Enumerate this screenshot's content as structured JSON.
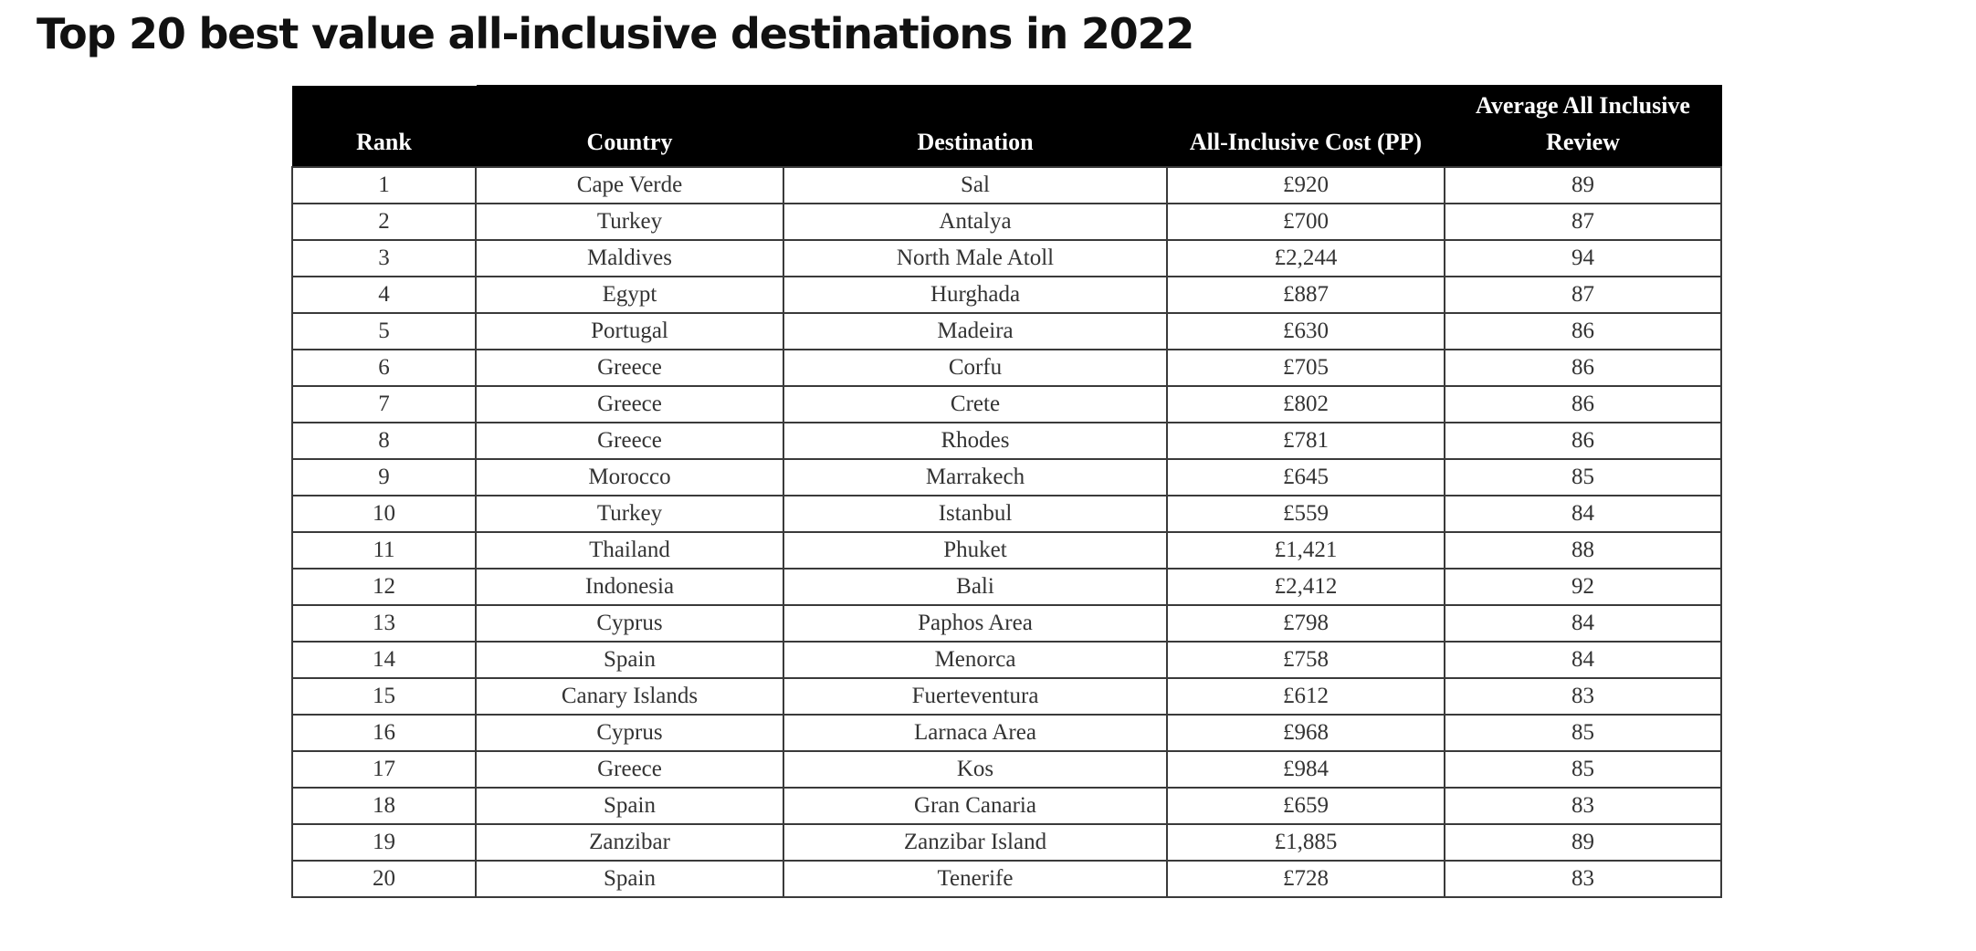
{
  "title": "Top 20 best value all-inclusive destinations in 2022",
  "table": {
    "headers": {
      "rank": "Rank",
      "country": "Country",
      "destination": "Destination",
      "cost": "All-Inclusive Cost (PP)",
      "review_line1": "Average All Inclusive",
      "review_line2": "Review"
    },
    "rows": [
      {
        "rank": "1",
        "country": "Cape Verde",
        "destination": "Sal",
        "cost": "£920",
        "review": "89"
      },
      {
        "rank": "2",
        "country": "Turkey",
        "destination": "Antalya",
        "cost": "£700",
        "review": "87"
      },
      {
        "rank": "3",
        "country": "Maldives",
        "destination": "North Male Atoll",
        "cost": "£2,244",
        "review": "94"
      },
      {
        "rank": "4",
        "country": "Egypt",
        "destination": "Hurghada",
        "cost": "£887",
        "review": "87"
      },
      {
        "rank": "5",
        "country": "Portugal",
        "destination": "Madeira",
        "cost": "£630",
        "review": "86"
      },
      {
        "rank": "6",
        "country": "Greece",
        "destination": "Corfu",
        "cost": "£705",
        "review": "86"
      },
      {
        "rank": "7",
        "country": "Greece",
        "destination": "Crete",
        "cost": "£802",
        "review": "86"
      },
      {
        "rank": "8",
        "country": "Greece",
        "destination": "Rhodes",
        "cost": "£781",
        "review": "86"
      },
      {
        "rank": "9",
        "country": "Morocco",
        "destination": "Marrakech",
        "cost": "£645",
        "review": "85"
      },
      {
        "rank": "10",
        "country": "Turkey",
        "destination": "Istanbul",
        "cost": "£559",
        "review": "84"
      },
      {
        "rank": "11",
        "country": "Thailand",
        "destination": "Phuket",
        "cost": "£1,421",
        "review": "88"
      },
      {
        "rank": "12",
        "country": "Indonesia",
        "destination": "Bali",
        "cost": "£2,412",
        "review": "92"
      },
      {
        "rank": "13",
        "country": "Cyprus",
        "destination": "Paphos Area",
        "cost": "£798",
        "review": "84"
      },
      {
        "rank": "14",
        "country": "Spain",
        "destination": "Menorca",
        "cost": "£758",
        "review": "84"
      },
      {
        "rank": "15",
        "country": "Canary Islands",
        "destination": "Fuerteventura",
        "cost": "£612",
        "review": "83"
      },
      {
        "rank": "16",
        "country": "Cyprus",
        "destination": "Larnaca Area",
        "cost": "£968",
        "review": "85"
      },
      {
        "rank": "17",
        "country": "Greece",
        "destination": "Kos",
        "cost": "£984",
        "review": "85"
      },
      {
        "rank": "18",
        "country": "Spain",
        "destination": "Gran Canaria",
        "cost": "£659",
        "review": "83"
      },
      {
        "rank": "19",
        "country": "Zanzibar",
        "destination": "Zanzibar Island",
        "cost": "£1,885",
        "review": "89"
      },
      {
        "rank": "20",
        "country": "Spain",
        "destination": "Tenerife",
        "cost": "£728",
        "review": "83"
      }
    ]
  }
}
